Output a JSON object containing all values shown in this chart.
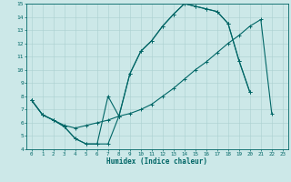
{
  "xlabel": "Humidex (Indice chaleur)",
  "background_color": "#cce8e8",
  "grid_color": "#aad0d0",
  "line_color": "#006666",
  "xlim": [
    -0.5,
    23.5
  ],
  "ylim": [
    4,
    15
  ],
  "xticks": [
    0,
    1,
    2,
    3,
    4,
    5,
    6,
    7,
    8,
    9,
    10,
    11,
    12,
    13,
    14,
    15,
    16,
    17,
    18,
    19,
    20,
    21,
    22,
    23
  ],
  "yticks": [
    4,
    5,
    6,
    7,
    8,
    9,
    10,
    11,
    12,
    13,
    14,
    15
  ],
  "line1_x": [
    0,
    1,
    2,
    3,
    4,
    5,
    6,
    7,
    8,
    9,
    10,
    11,
    12,
    13,
    14,
    15,
    16,
    17,
    18,
    19,
    20,
    21,
    22
  ],
  "line1_y": [
    7.7,
    6.6,
    6.2,
    5.7,
    4.8,
    4.4,
    4.4,
    4.4,
    6.5,
    9.7,
    11.4,
    12.2,
    13.3,
    14.2,
    15.0,
    14.8,
    14.6,
    14.4,
    13.5,
    10.7,
    8.3,
    null,
    null
  ],
  "line2_x": [
    0,
    1,
    2,
    3,
    4,
    5,
    6,
    7,
    8,
    9,
    10,
    11,
    12,
    13,
    14,
    15,
    16,
    17,
    18,
    19,
    20,
    21,
    22
  ],
  "line2_y": [
    7.7,
    6.6,
    6.2,
    5.7,
    4.8,
    4.4,
    4.4,
    8.0,
    6.5,
    9.7,
    11.4,
    12.2,
    13.3,
    14.2,
    15.0,
    14.8,
    14.6,
    14.4,
    13.5,
    10.7,
    8.3,
    null,
    null
  ],
  "line3_x": [
    0,
    1,
    2,
    3,
    4,
    5,
    6,
    7,
    8,
    9,
    10,
    11,
    12,
    13,
    14,
    15,
    16,
    17,
    18,
    19,
    20,
    21,
    22,
    23
  ],
  "line3_y": [
    7.7,
    6.6,
    6.2,
    5.8,
    5.6,
    5.8,
    6.0,
    6.2,
    6.5,
    6.7,
    7.0,
    7.4,
    8.0,
    8.6,
    9.3,
    10.0,
    10.6,
    11.3,
    12.0,
    12.6,
    13.3,
    13.8,
    6.7,
    null
  ]
}
